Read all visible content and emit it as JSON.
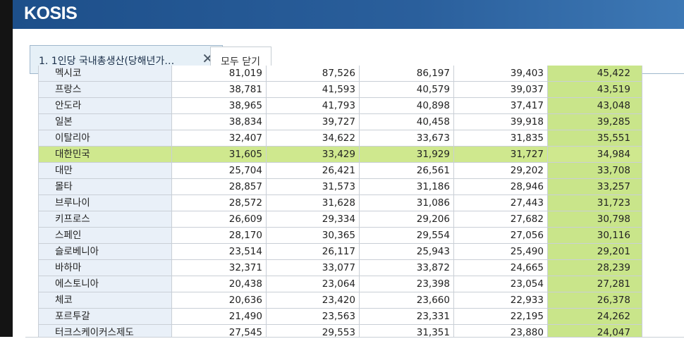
{
  "app": {
    "logo": "KOSIS"
  },
  "tabs": {
    "active_label": "1. 1인당 국내총생산(당해년가…",
    "close_all_label": "모두 닫기"
  },
  "table": {
    "rows": [
      [
        "멕시코",
        "81,019",
        "87,526",
        "86,197",
        "39,403",
        "45,422"
      ],
      [
        "프랑스",
        "38,781",
        "41,593",
        "40,579",
        "39,037",
        "43,519"
      ],
      [
        "안도라",
        "38,965",
        "41,793",
        "40,898",
        "37,417",
        "43,048"
      ],
      [
        "일본",
        "38,834",
        "39,727",
        "40,458",
        "39,918",
        "39,285"
      ],
      [
        "이탈리아",
        "32,407",
        "34,622",
        "33,673",
        "31,835",
        "35,551"
      ],
      [
        "대한민국",
        "31,605",
        "33,429",
        "31,929",
        "31,727",
        "34,984"
      ],
      [
        "대만",
        "25,704",
        "26,421",
        "26,561",
        "29,202",
        "33,708"
      ],
      [
        "몰타",
        "28,857",
        "31,573",
        "31,186",
        "28,946",
        "33,257"
      ],
      [
        "브루나이",
        "28,572",
        "31,628",
        "31,086",
        "27,443",
        "31,723"
      ],
      [
        "키프로스",
        "26,609",
        "29,334",
        "29,206",
        "27,682",
        "30,798"
      ],
      [
        "스페인",
        "28,170",
        "30,365",
        "29,554",
        "27,056",
        "30,116"
      ],
      [
        "슬로베니아",
        "23,514",
        "26,117",
        "25,943",
        "25,490",
        "29,201"
      ],
      [
        "바하마",
        "32,371",
        "33,077",
        "33,872",
        "24,665",
        "28,239"
      ],
      [
        "에스토니아",
        "20,438",
        "23,064",
        "23,398",
        "23,054",
        "27,281"
      ],
      [
        "체코",
        "20,636",
        "23,420",
        "23,660",
        "22,933",
        "26,378"
      ],
      [
        "포르투갈",
        "21,490",
        "23,563",
        "23,331",
        "22,195",
        "24,262"
      ],
      [
        "터크스케이커스제도",
        "27,545",
        "29,553",
        "31,351",
        "23,880",
        "24,047"
      ]
    ],
    "highlighted_row": 5
  },
  "colors": {
    "header_bg": "#1d4f8a",
    "highlight_row": "#cfe88e",
    "highlight_col": "#c9e58a",
    "row_header_bg": "#e9f0f8",
    "indicator": "#1e6fa8"
  }
}
